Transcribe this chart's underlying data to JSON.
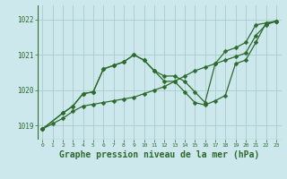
{
  "background_color": "#cce8ec",
  "grid_color": "#aacccc",
  "line_color": "#2d6a2d",
  "xlabel": "Graphe pression niveau de la mer (hPa)",
  "yticks": [
    1019,
    1020,
    1021,
    1022
  ],
  "xticks": [
    0,
    1,
    2,
    3,
    4,
    5,
    6,
    7,
    8,
    9,
    10,
    11,
    12,
    13,
    14,
    15,
    16,
    17,
    18,
    19,
    20,
    21,
    22,
    23
  ],
  "xlim": [
    -0.5,
    23.5
  ],
  "ylim": [
    1018.6,
    1022.4
  ],
  "line1_x": [
    0,
    1,
    2,
    3,
    4,
    5,
    6,
    7,
    8,
    9,
    10,
    11,
    12,
    13,
    14,
    15,
    16,
    17,
    18,
    19,
    20,
    21,
    22,
    23
  ],
  "line1_y": [
    1018.9,
    1019.05,
    1019.2,
    1019.4,
    1019.55,
    1019.6,
    1019.65,
    1019.7,
    1019.75,
    1019.8,
    1019.9,
    1020.0,
    1020.1,
    1020.25,
    1020.4,
    1020.55,
    1020.65,
    1020.75,
    1020.85,
    1020.95,
    1021.05,
    1021.55,
    1021.85,
    1021.95
  ],
  "line2_x": [
    0,
    2,
    3,
    4,
    5,
    6,
    7,
    8,
    9,
    10,
    11,
    12,
    13,
    14,
    15,
    16,
    17,
    18,
    19,
    20,
    21,
    22,
    23
  ],
  "line2_y": [
    1018.9,
    1019.35,
    1019.55,
    1019.9,
    1019.95,
    1020.6,
    1020.7,
    1020.8,
    1021.0,
    1020.85,
    1020.55,
    1020.4,
    1020.4,
    1020.25,
    1019.95,
    1019.65,
    1020.75,
    1021.1,
    1021.2,
    1021.35,
    1021.85,
    1021.9,
    1021.95
  ],
  "line3_x": [
    0,
    2,
    3,
    4,
    5,
    6,
    7,
    8,
    9,
    10,
    11,
    12,
    13,
    14,
    15,
    16,
    17,
    18,
    19,
    20,
    21,
    22,
    23
  ],
  "line3_y": [
    1018.9,
    1019.35,
    1019.55,
    1019.9,
    1019.95,
    1020.6,
    1020.7,
    1020.8,
    1021.0,
    1020.85,
    1020.55,
    1020.25,
    1020.25,
    1019.95,
    1019.65,
    1019.58,
    1019.7,
    1019.85,
    1020.75,
    1020.85,
    1021.35,
    1021.9,
    1021.95
  ]
}
